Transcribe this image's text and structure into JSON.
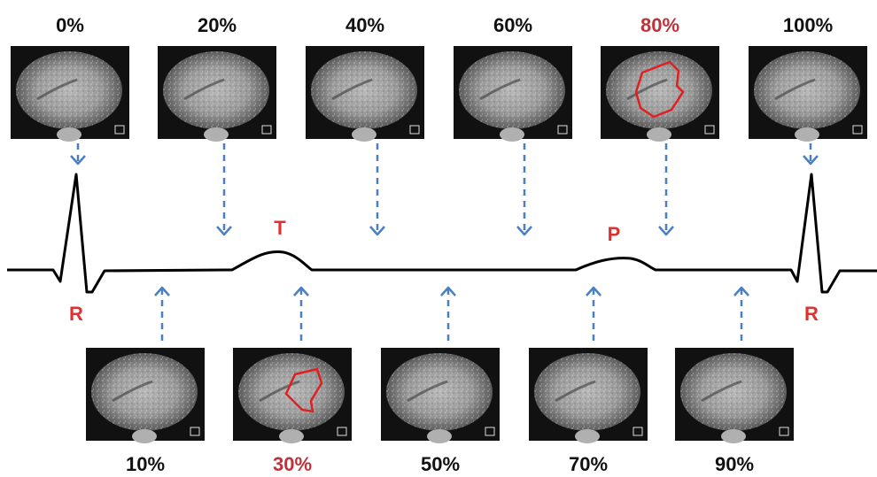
{
  "colors": {
    "normal_label": "#111111",
    "highlight_label": "#c0323a",
    "arrow": "#4a7fc1",
    "ecg_line": "#000000",
    "contour": "#e02020",
    "wave_label": "#e03030"
  },
  "top_frames": [
    {
      "label": "0%",
      "highlight": false,
      "contour": false
    },
    {
      "label": "20%",
      "highlight": false,
      "contour": false
    },
    {
      "label": "40%",
      "highlight": false,
      "contour": false
    },
    {
      "label": "60%",
      "highlight": false,
      "contour": false
    },
    {
      "label": "80%",
      "highlight": true,
      "contour": true
    },
    {
      "label": "100%",
      "highlight": false,
      "contour": false
    }
  ],
  "bottom_frames": [
    {
      "label": "10%",
      "highlight": false,
      "contour": false
    },
    {
      "label": "30%",
      "highlight": true,
      "contour": true
    },
    {
      "label": "50%",
      "highlight": false,
      "contour": false
    },
    {
      "label": "70%",
      "highlight": false,
      "contour": false
    },
    {
      "label": "90%",
      "highlight": false,
      "contour": false
    }
  ],
  "ecg": {
    "labels": {
      "r_left": "R",
      "t_wave": "T",
      "p_wave": "P",
      "r_right": "R"
    }
  },
  "icons": {
    "frame_marker": "hf-marker-icon",
    "arrow": "dashed-arrow-icon"
  }
}
